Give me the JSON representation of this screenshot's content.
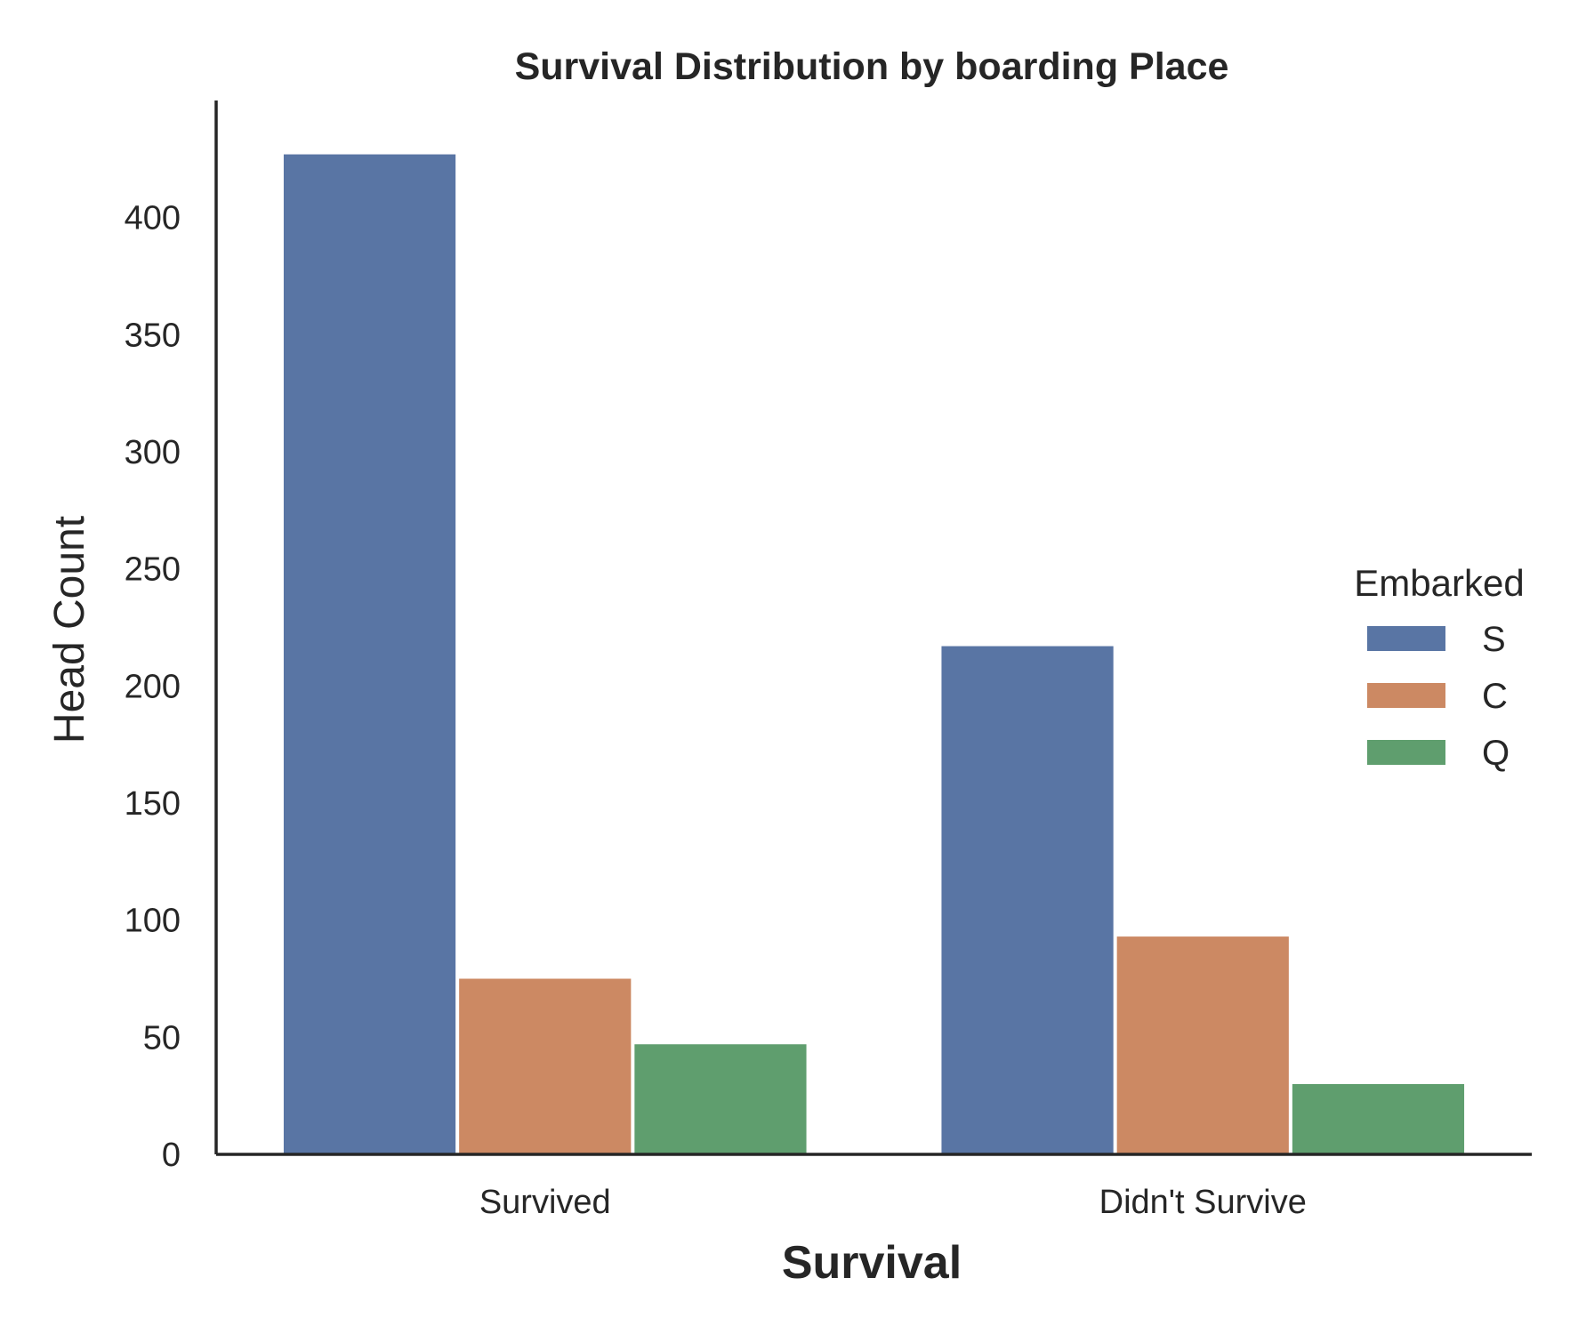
{
  "chart_data": {
    "type": "bar",
    "title": "Survival Distribution by boarding Place",
    "xlabel": "Survival",
    "ylabel": "Head Count",
    "categories": [
      "Survived",
      "Didn't Survive"
    ],
    "series": [
      {
        "name": "S",
        "values": [
          427,
          217
        ],
        "color": "#5975a4"
      },
      {
        "name": "C",
        "values": [
          75,
          93
        ],
        "color": "#cc8963"
      },
      {
        "name": "Q",
        "values": [
          47,
          30
        ],
        "color": "#5f9e6e"
      }
    ],
    "ylim": [
      0,
      450
    ],
    "yticks": [
      0,
      50,
      100,
      150,
      200,
      250,
      300,
      350,
      400
    ],
    "legend": {
      "title": "Embarked",
      "position": "right"
    },
    "grid": false
  }
}
